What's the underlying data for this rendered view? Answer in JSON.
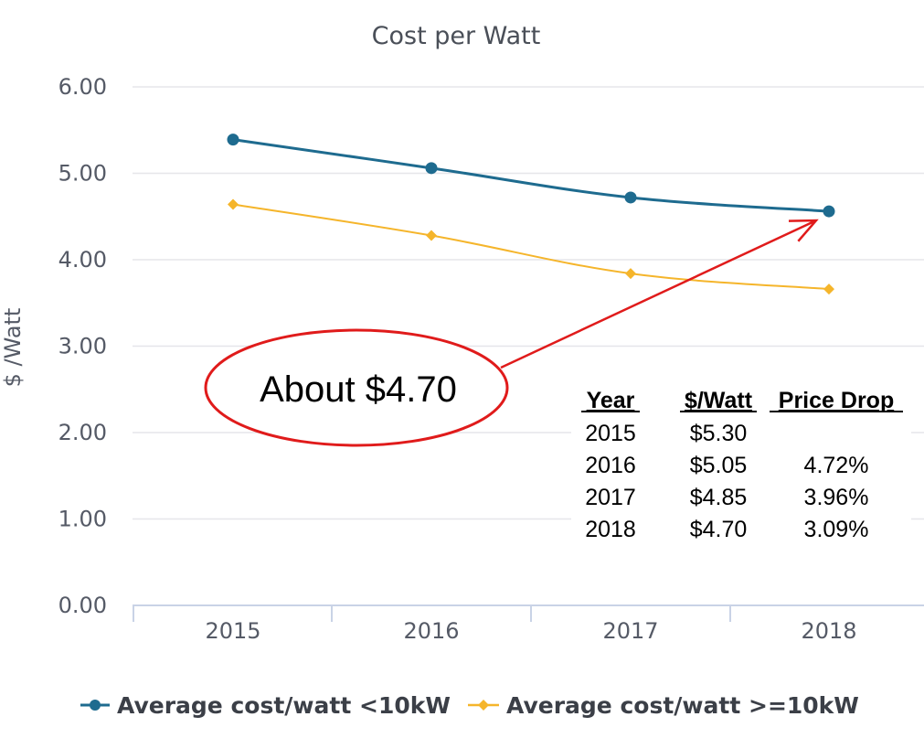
{
  "chart_data": {
    "type": "line",
    "title": "Cost per Watt",
    "xlabel": "",
    "ylabel": "$ /Watt",
    "categories": [
      "2015",
      "2016",
      "2017",
      "2018"
    ],
    "ylim": [
      0,
      6
    ],
    "y_ticks": [
      "0.00",
      "1.00",
      "2.00",
      "3.00",
      "4.00",
      "5.00",
      "6.00"
    ],
    "grid": true,
    "legend_position": "bottom",
    "series": [
      {
        "name": "Average cost/watt <10kW",
        "values": [
          5.39,
          5.06,
          4.72,
          4.56
        ],
        "color": "#1e6b8f",
        "marker": "circle"
      },
      {
        "name": "Average cost/watt >=10kW",
        "values": [
          4.64,
          4.28,
          3.84,
          3.66
        ],
        "color": "#f5b52b",
        "marker": "diamond"
      }
    ],
    "annotation": {
      "text": "About $4.70",
      "arrow_to": {
        "category": "2018",
        "series": "Average cost/watt <10kW"
      },
      "color": "#e01b1b"
    },
    "table": {
      "headers": [
        "Year",
        "$/Watt",
        "Price Drop"
      ],
      "rows": [
        [
          "2015",
          "$5.30",
          ""
        ],
        [
          "2016",
          "$5.05",
          "4.72%"
        ],
        [
          "2017",
          "$4.85",
          "3.96%"
        ],
        [
          "2018",
          "$4.70",
          "3.09%"
        ]
      ]
    }
  }
}
